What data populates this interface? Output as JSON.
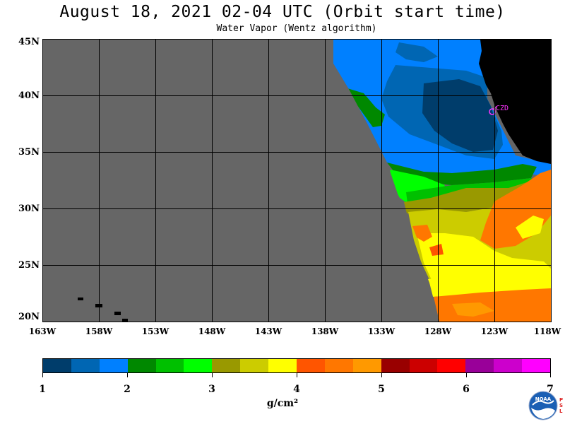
{
  "title": "August 18, 2021  02-04 UTC  (Orbit start time)",
  "subtitle": "Water Vapor (Wentz algorithm)",
  "map": {
    "lat_labels": [
      "45N",
      "40N",
      "35N",
      "30N",
      "25N",
      "20N"
    ],
    "lon_labels": [
      "163W",
      "158W",
      "153W",
      "148W",
      "143W",
      "138W",
      "133W",
      "128W",
      "123W",
      "118W"
    ],
    "station_label": "CZD",
    "colors": {
      "no_data": "#666666",
      "land": "#000000",
      "grid": "#000000",
      "station": "#ff33ff"
    }
  },
  "colorbar": {
    "tick_labels": [
      "1",
      "2",
      "3",
      "4",
      "5",
      "6",
      "7"
    ],
    "units_label": "g/cm²",
    "colors": [
      "#003d6b",
      "#0066b3",
      "#0080ff",
      "#008800",
      "#00c000",
      "#00ff00",
      "#999900",
      "#cccc00",
      "#ffff00",
      "#ff5500",
      "#ff7700",
      "#ff9900",
      "#990000",
      "#cc0000",
      "#ff0000",
      "#990099",
      "#cc00cc",
      "#ff00ff"
    ]
  },
  "logo": {
    "text": "NOAA",
    "side_text": "PSL"
  }
}
